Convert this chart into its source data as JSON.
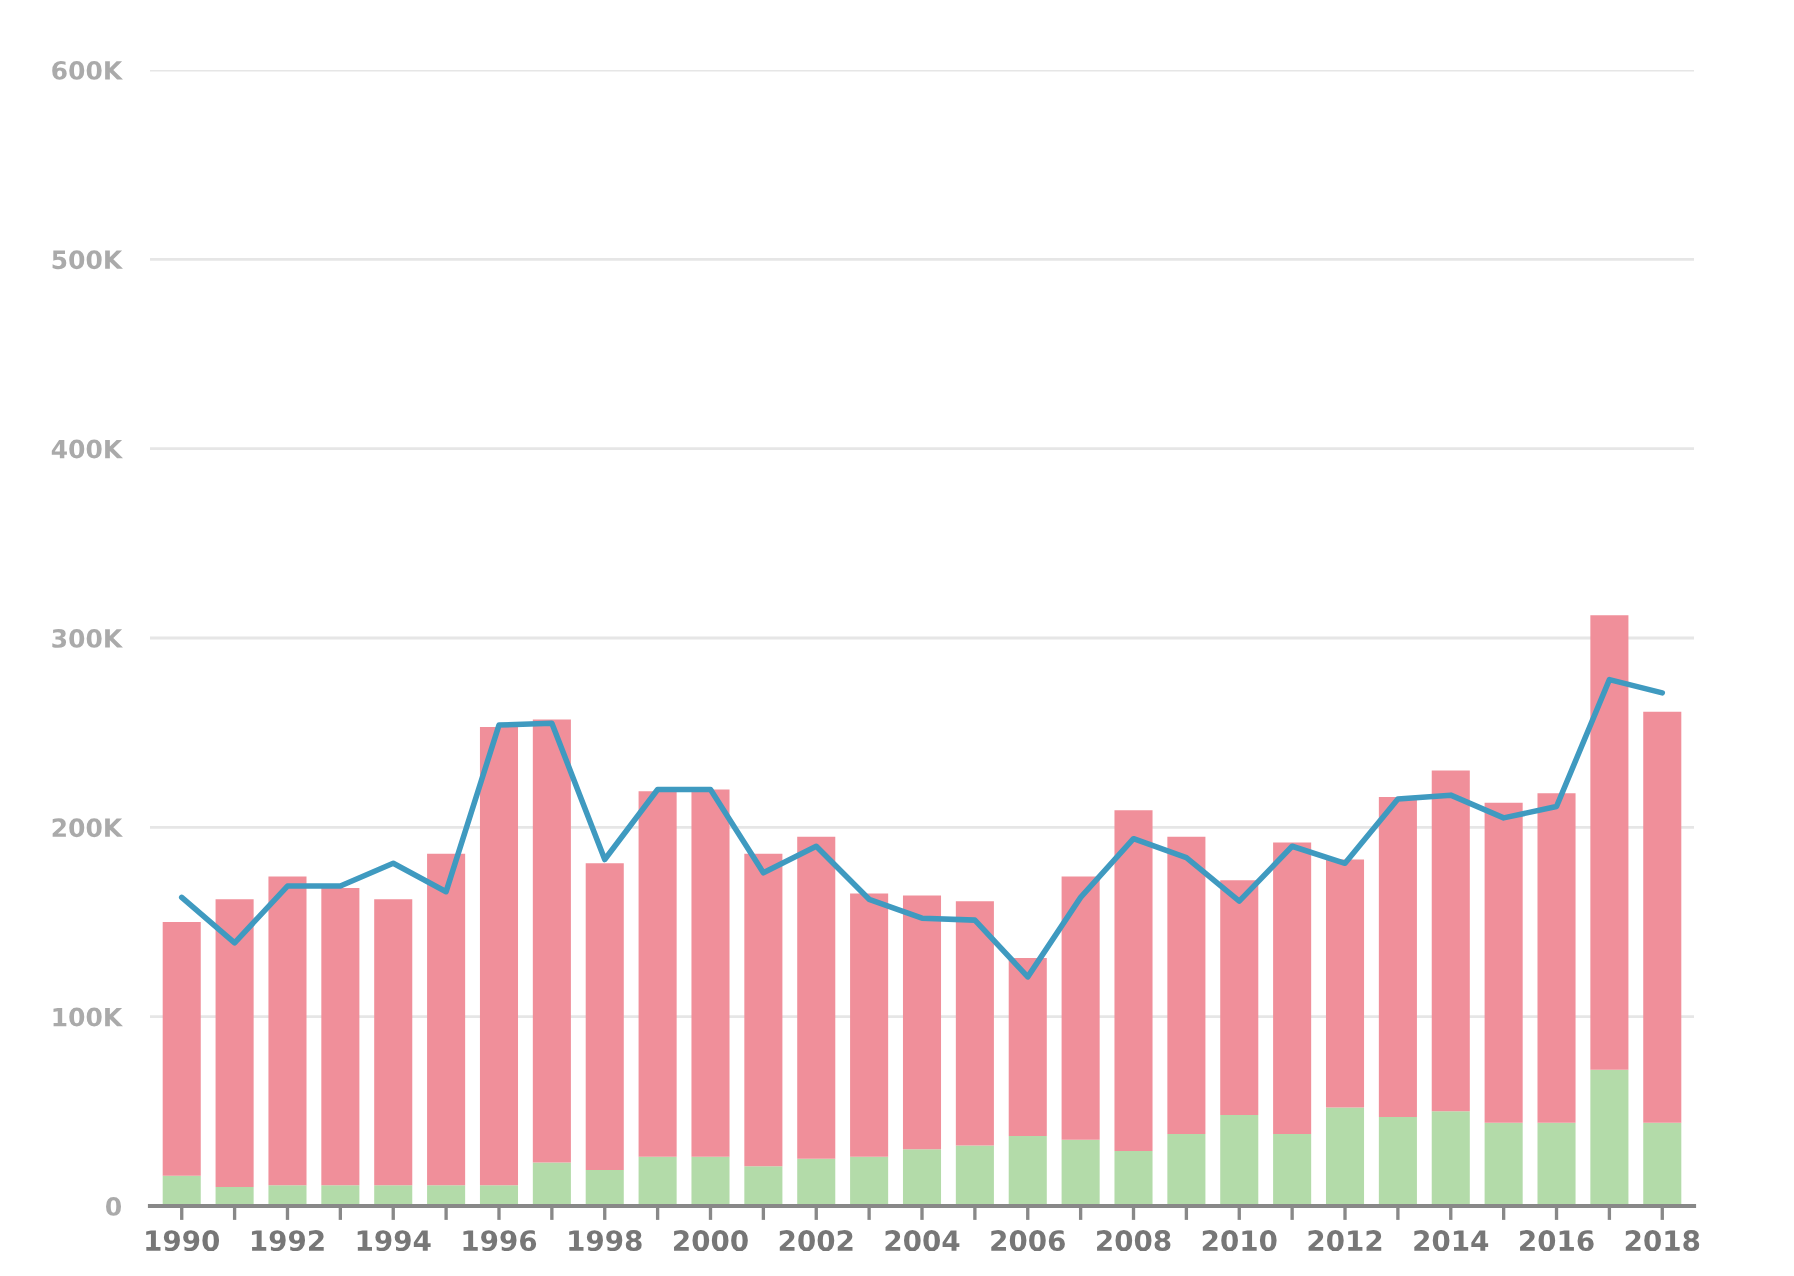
{
  "chart_data": {
    "type": "bar",
    "stacked": true,
    "x": [
      1990,
      1991,
      1992,
      1993,
      1994,
      1995,
      1996,
      1997,
      1998,
      1999,
      2000,
      2001,
      2002,
      2003,
      2004,
      2005,
      2006,
      2007,
      2008,
      2009,
      2010,
      2011,
      2012,
      2013,
      2014,
      2015,
      2016,
      2017,
      2018
    ],
    "series": [
      {
        "color": "#b3dba9",
        "values": [
          16000,
          10000,
          11000,
          11000,
          11000,
          11000,
          11000,
          23000,
          19000,
          26000,
          26000,
          21000,
          25000,
          26000,
          30000,
          32000,
          37000,
          35000,
          29000,
          38000,
          48000,
          38000,
          52000,
          47000,
          50000,
          44000,
          44000,
          72000,
          44000
        ]
      },
      {
        "color": "#f08f9a",
        "values": [
          134000,
          152000,
          163000,
          157000,
          151000,
          175000,
          242000,
          234000,
          162000,
          193000,
          194000,
          165000,
          170000,
          139000,
          134000,
          129000,
          94000,
          139000,
          180000,
          157000,
          124000,
          154000,
          131000,
          169000,
          180000,
          169000,
          174000,
          240000,
          217000
        ]
      },
      {
        "type": "line",
        "color": "#3f9ac0",
        "values": [
          163000,
          139000,
          169000,
          169000,
          181000,
          166000,
          254000,
          255000,
          183000,
          220000,
          220000,
          176000,
          190000,
          162000,
          152000,
          151000,
          121000,
          163000,
          194000,
          184000,
          161000,
          190000,
          181000,
          215000,
          217000,
          205000,
          211000,
          278000,
          271000
        ]
      }
    ],
    "xlim": [
      1989.4,
      2018.6
    ],
    "xticks": [
      1990,
      {
        "value": 1991,
        "label": null
      },
      1992,
      {
        "value": 1993,
        "label": null
      },
      1994,
      {
        "value": 1995,
        "label": null
      },
      1996,
      {
        "value": 1997,
        "label": null
      },
      1998,
      {
        "value": 1999,
        "label": null
      },
      2000,
      {
        "value": 2001,
        "label": null
      },
      2002,
      {
        "value": 2003,
        "label": null
      },
      2004,
      {
        "value": 2005,
        "label": null
      },
      2006,
      {
        "value": 2007,
        "label": null
      },
      2008,
      {
        "value": 2009,
        "label": null
      },
      2010,
      {
        "value": 2011,
        "label": null
      },
      2012,
      {
        "value": 2013,
        "label": null
      },
      2014,
      {
        "value": 2015,
        "label": null
      },
      2016,
      {
        "value": 2017,
        "label": null
      },
      2018
    ],
    "ylim": [
      0,
      600000
    ],
    "yticks": [
      0,
      {
        "value": 100000,
        "label": "100K"
      },
      {
        "value": 200000,
        "label": "200K"
      },
      {
        "value": 300000,
        "label": "300K"
      },
      {
        "value": 400000,
        "label": "400K"
      },
      {
        "value": 500000,
        "label": "500K"
      },
      {
        "value": 600000,
        "label": "600K"
      }
    ],
    "grid": "y"
  }
}
